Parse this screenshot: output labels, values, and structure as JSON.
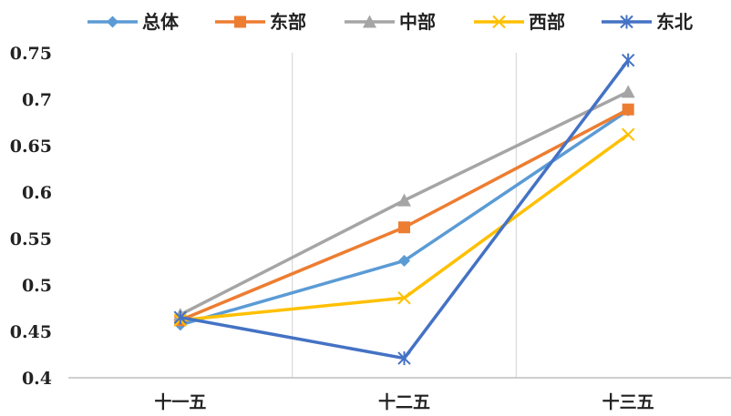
{
  "chart_data": {
    "type": "line",
    "categories": [
      "十一五",
      "十二五",
      "十三五"
    ],
    "ylim": [
      0.4,
      0.75
    ],
    "yticks": [
      "0.4",
      "0.45",
      "0.5",
      "0.55",
      "0.6",
      "0.65",
      "0.7",
      "0.75"
    ],
    "grid": "vertical",
    "legend_position": "top",
    "series": [
      {
        "name": "总体",
        "values": [
          0.457,
          0.526,
          0.688
        ],
        "color": "#5B9BD5",
        "marker": "diamond"
      },
      {
        "name": "东部",
        "values": [
          0.462,
          0.562,
          0.689
        ],
        "color": "#ED7D31",
        "marker": "square"
      },
      {
        "name": "中部",
        "values": [
          0.468,
          0.591,
          0.708
        ],
        "color": "#A5A5A5",
        "marker": "triangle"
      },
      {
        "name": "西部",
        "values": [
          0.462,
          0.486,
          0.662
        ],
        "color": "#FFC000",
        "marker": "x"
      },
      {
        "name": "东北",
        "values": [
          0.465,
          0.421,
          0.742
        ],
        "color": "#4472C4",
        "marker": "star"
      }
    ]
  }
}
